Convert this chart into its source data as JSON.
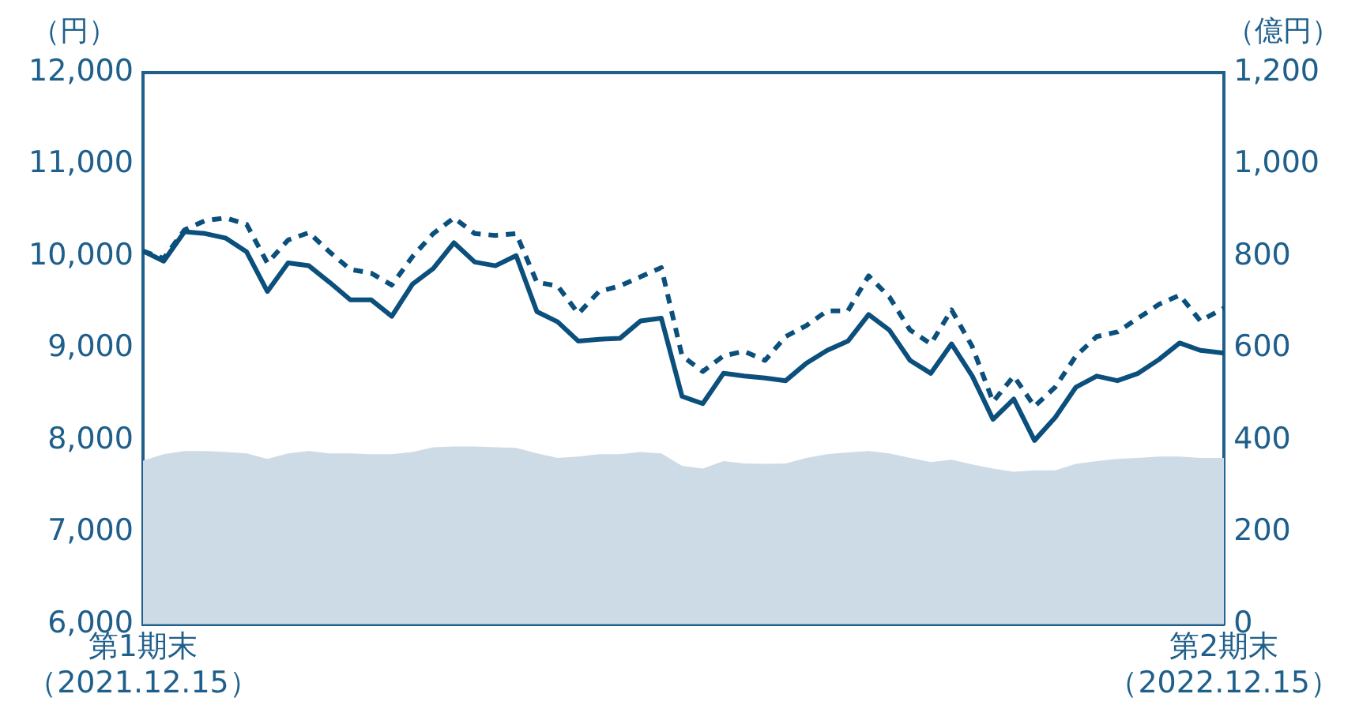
{
  "chart_data": {
    "type": "line",
    "ylabel": "（円）",
    "y2label": "（億円）",
    "x": [
      "2021-12-15",
      "2021-12-22",
      "2021-12-29",
      "2022-01-05",
      "2022-01-12",
      "2022-01-19",
      "2022-01-26",
      "2022-02-02",
      "2022-02-09",
      "2022-02-16",
      "2022-02-23",
      "2022-03-02",
      "2022-03-09",
      "2022-03-16",
      "2022-03-23",
      "2022-03-30",
      "2022-04-06",
      "2022-04-13",
      "2022-04-20",
      "2022-04-27",
      "2022-05-04",
      "2022-05-11",
      "2022-05-18",
      "2022-05-25",
      "2022-06-01",
      "2022-06-08",
      "2022-06-15",
      "2022-06-22",
      "2022-06-29",
      "2022-07-06",
      "2022-07-13",
      "2022-07-20",
      "2022-07-27",
      "2022-08-03",
      "2022-08-10",
      "2022-08-17",
      "2022-08-24",
      "2022-08-31",
      "2022-09-07",
      "2022-09-14",
      "2022-09-21",
      "2022-09-28",
      "2022-10-05",
      "2022-10-12",
      "2022-10-19",
      "2022-10-26",
      "2022-11-02",
      "2022-11-09",
      "2022-11-16",
      "2022-11-23",
      "2022-11-30",
      "2022-12-07",
      "2022-12-15"
    ],
    "series": [
      {
        "type": "area",
        "axis": "y2",
        "color": "#cddbe6",
        "values": [
          356,
          370,
          377,
          377,
          375,
          372,
          360,
          372,
          377,
          372,
          372,
          370,
          370,
          375,
          385,
          387,
          387,
          385,
          384,
          372,
          362,
          365,
          370,
          370,
          375,
          372,
          345,
          339,
          355,
          350,
          349,
          350,
          362,
          370,
          374,
          377,
          372,
          362,
          353,
          358,
          348,
          339,
          332,
          335,
          335,
          349,
          355,
          360,
          362,
          365,
          365,
          362,
          362
        ]
      },
      {
        "type": "line",
        "line_style": "dashed",
        "color": "#0b4f7c",
        "values": [
          10060,
          9980,
          10290,
          10390,
          10420,
          10350,
          9930,
          10180,
          10260,
          10050,
          9860,
          9820,
          9690,
          10000,
          10250,
          10420,
          10250,
          10230,
          10250,
          9720,
          9680,
          9380,
          9620,
          9680,
          9780,
          9880,
          8920,
          8750,
          8920,
          8970,
          8870,
          9130,
          9250,
          9410,
          9410,
          9790,
          9560,
          9200,
          9050,
          9420,
          9020,
          8420,
          8700,
          8370,
          8580,
          8920,
          9130,
          9180,
          9330,
          9480,
          9580,
          9300,
          9440
        ]
      },
      {
        "type": "line",
        "line_style": "solid",
        "color": "#0b4f7c",
        "values": [
          10060,
          9950,
          10270,
          10250,
          10200,
          10050,
          9620,
          9930,
          9900,
          9720,
          9530,
          9530,
          9350,
          9700,
          9870,
          10150,
          9940,
          9900,
          10010,
          9400,
          9290,
          9080,
          9100,
          9110,
          9300,
          9330,
          8480,
          8400,
          8730,
          8700,
          8680,
          8650,
          8840,
          8980,
          9080,
          9370,
          9200,
          8870,
          8730,
          9050,
          8700,
          8230,
          8450,
          8000,
          8250,
          8580,
          8700,
          8650,
          8730,
          8880,
          9060,
          8980,
          8950
        ]
      }
    ],
    "xlim": [
      "2021-12-15",
      "2022-12-15"
    ],
    "xticks": [
      {
        "value": "2021-12-15",
        "label": "第1期末（2021.12.15）"
      },
      {
        "value": "2022-12-15",
        "label": "第2期末（2022.12.15）"
      }
    ],
    "ylim": [
      6000,
      12000
    ],
    "yticks": [
      {
        "value": 6000,
        "label": "6,000"
      },
      {
        "value": 7000,
        "label": "7,000"
      },
      {
        "value": 8000,
        "label": "8,000"
      },
      {
        "value": 9000,
        "label": "9,000"
      },
      {
        "value": 10000,
        "label": "10,000"
      },
      {
        "value": 11000,
        "label": "11,000"
      },
      {
        "value": 12000,
        "label": "12,000"
      }
    ],
    "y2lim": [
      0,
      1200
    ],
    "y2ticks": [
      0,
      200,
      400,
      600,
      800,
      {
        "value": 1000,
        "label": "1,000"
      },
      {
        "value": 1200,
        "label": "1,200"
      }
    ],
    "grid": false,
    "legend": false,
    "marker": "none"
  }
}
